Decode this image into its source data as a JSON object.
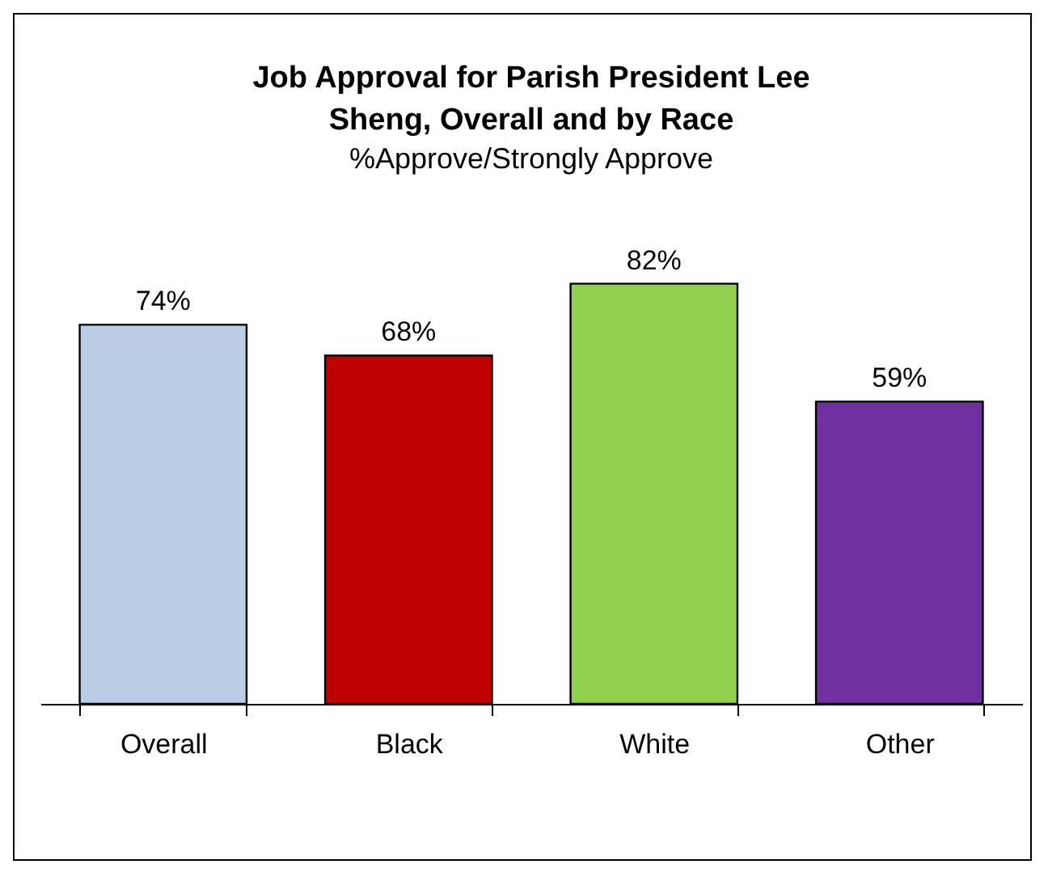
{
  "chart_data": {
    "type": "bar",
    "title": [
      "Job Approval for Parish President Lee",
      "Sheng, Overall and  by Race"
    ],
    "subtitle": "%Approve/Strongly Approve",
    "categories": [
      "Overall",
      "Black",
      "White",
      "Other"
    ],
    "values": [
      74,
      68,
      82,
      59
    ],
    "colors": [
      "#b9cde5",
      "#c00000",
      "#92d050",
      "#7030a0"
    ],
    "value_labels": [
      "74%",
      "68%",
      "82%",
      "59%"
    ]
  }
}
